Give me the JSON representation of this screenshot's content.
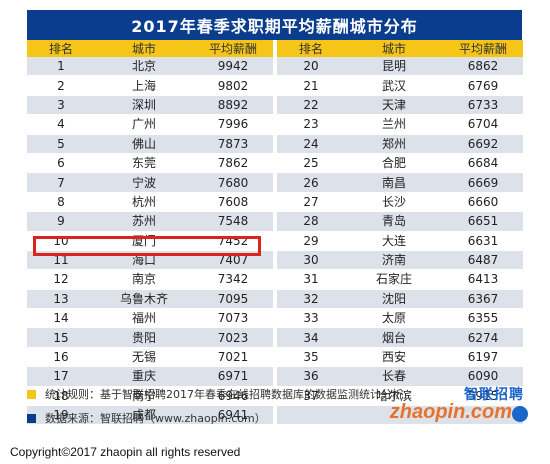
{
  "title": "2017年春季求职期平均薪酬城市分布",
  "headers": [
    "排名",
    "城市",
    "平均薪酬",
    "排名",
    "城市",
    "平均薪酬"
  ],
  "rows": [
    {
      "left": {
        "rank": "1",
        "city": "北京",
        "salary": "9942"
      },
      "right": {
        "rank": "20",
        "city": "昆明",
        "salary": "6862"
      }
    },
    {
      "left": {
        "rank": "2",
        "city": "上海",
        "salary": "9802"
      },
      "right": {
        "rank": "21",
        "city": "武汉",
        "salary": "6769"
      }
    },
    {
      "left": {
        "rank": "3",
        "city": "深圳",
        "salary": "8892"
      },
      "right": {
        "rank": "22",
        "city": "天津",
        "salary": "6733"
      }
    },
    {
      "left": {
        "rank": "4",
        "city": "广州",
        "salary": "7996"
      },
      "right": {
        "rank": "23",
        "city": "兰州",
        "salary": "6704"
      }
    },
    {
      "left": {
        "rank": "5",
        "city": "佛山",
        "salary": "7873"
      },
      "right": {
        "rank": "24",
        "city": "郑州",
        "salary": "6692"
      }
    },
    {
      "left": {
        "rank": "6",
        "city": "东莞",
        "salary": "7862"
      },
      "right": {
        "rank": "25",
        "city": "合肥",
        "salary": "6684"
      }
    },
    {
      "left": {
        "rank": "7",
        "city": "宁波",
        "salary": "7680"
      },
      "right": {
        "rank": "26",
        "city": "南昌",
        "salary": "6669"
      }
    },
    {
      "left": {
        "rank": "8",
        "city": "杭州",
        "salary": "7608"
      },
      "right": {
        "rank": "27",
        "city": "长沙",
        "salary": "6660"
      }
    },
    {
      "left": {
        "rank": "9",
        "city": "苏州",
        "salary": "7548"
      },
      "right": {
        "rank": "28",
        "city": "青岛",
        "salary": "6651"
      }
    },
    {
      "left": {
        "rank": "10",
        "city": "厦门",
        "salary": "7452"
      },
      "right": {
        "rank": "29",
        "city": "大连",
        "salary": "6631"
      }
    },
    {
      "left": {
        "rank": "11",
        "city": "海口",
        "salary": "7407"
      },
      "right": {
        "rank": "30",
        "city": "济南",
        "salary": "6487"
      }
    },
    {
      "left": {
        "rank": "12",
        "city": "南京",
        "salary": "7342"
      },
      "right": {
        "rank": "31",
        "city": "石家庄",
        "salary": "6413"
      }
    },
    {
      "left": {
        "rank": "13",
        "city": "乌鲁木齐",
        "salary": "7095"
      },
      "right": {
        "rank": "32",
        "city": "沈阳",
        "salary": "6367"
      }
    },
    {
      "left": {
        "rank": "14",
        "city": "福州",
        "salary": "7073"
      },
      "right": {
        "rank": "33",
        "city": "太原",
        "salary": "6355"
      }
    },
    {
      "left": {
        "rank": "15",
        "city": "贵阳",
        "salary": "7023"
      },
      "right": {
        "rank": "34",
        "city": "烟台",
        "salary": "6274"
      }
    },
    {
      "left": {
        "rank": "16",
        "city": "无锡",
        "salary": "7021"
      },
      "right": {
        "rank": "35",
        "city": "西安",
        "salary": "6197"
      }
    },
    {
      "left": {
        "rank": "17",
        "city": "重庆",
        "salary": "6971"
      },
      "right": {
        "rank": "36",
        "city": "长春",
        "salary": "6090"
      }
    },
    {
      "left": {
        "rank": "18",
        "city": "南宁",
        "salary": "6946"
      },
      "right": {
        "rank": "37",
        "city": "哈尔滨",
        "salary": "5915"
      }
    },
    {
      "left": {
        "rank": "19",
        "city": "成都",
        "salary": "6941"
      },
      "right": {
        "rank": "",
        "city": "",
        "salary": ""
      }
    }
  ],
  "highlight_rank": "12",
  "notes": {
    "rule": "统计规则：基于智联招聘2017年春季在线招聘数据库的数据监测统计分析",
    "source": "数据来源：智联招聘（www.zhaopin.com）"
  },
  "logo": {
    "cn": "智联招聘",
    "en": "zhaopin.com"
  },
  "colors": {
    "title_bg": "#0b3d8f",
    "header_bg": "#f5c518",
    "row_stripe": "#dce1ea",
    "highlight": "#d9251d"
  },
  "copyright": "Copyright©2017 zhaopin all rights reserved"
}
